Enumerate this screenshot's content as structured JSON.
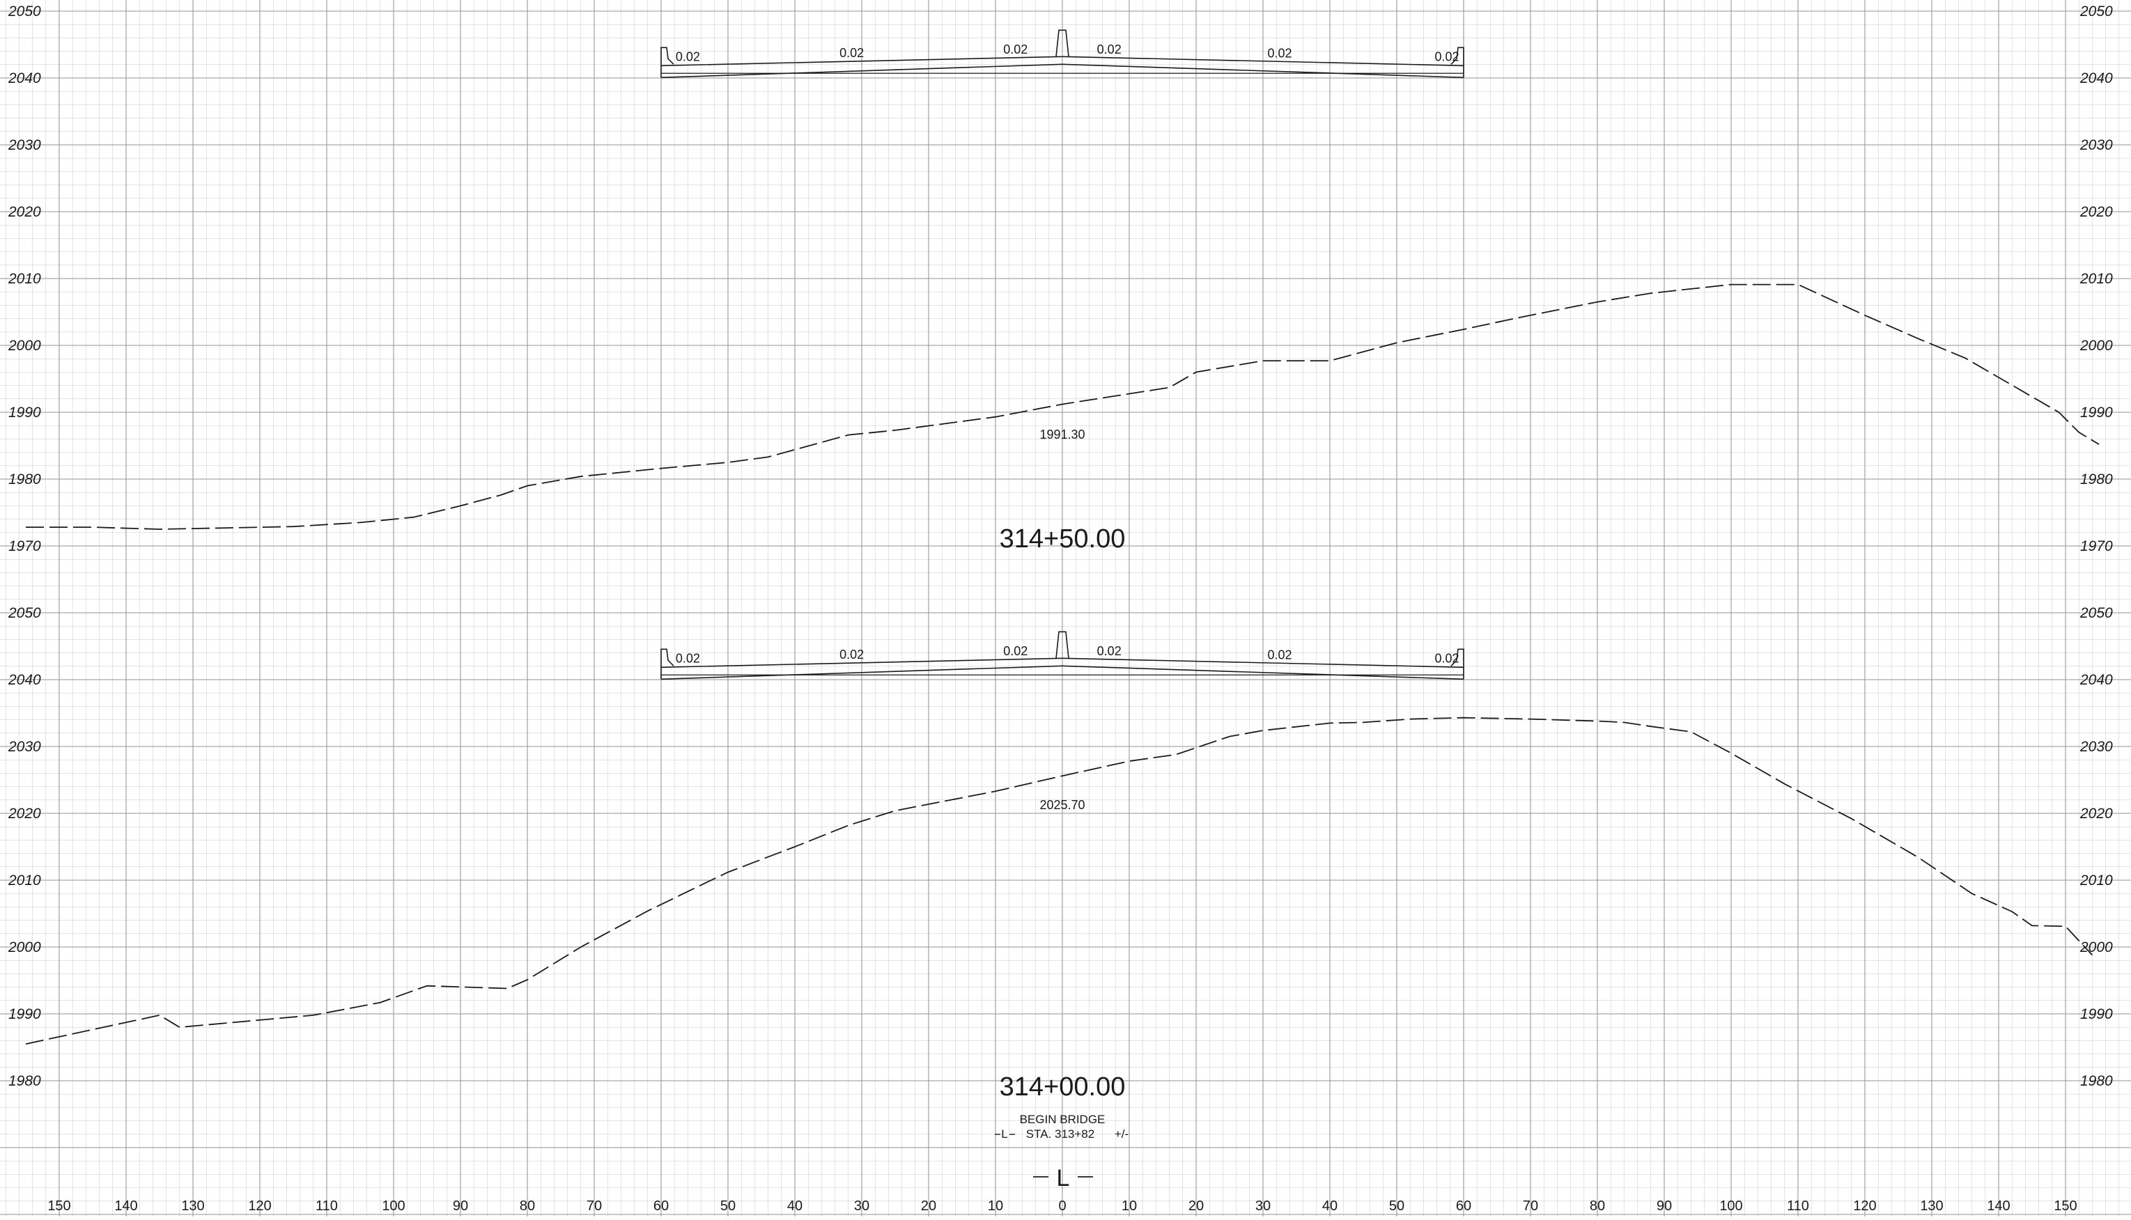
{
  "sheet": {
    "grid_color": "#9a9a9a",
    "line_color": "#1a1a1a",
    "offsets": [
      "150",
      "140",
      "130",
      "120",
      "110",
      "100",
      "90",
      "80",
      "70",
      "60",
      "50",
      "40",
      "30",
      "20",
      "10",
      "0",
      "10",
      "20",
      "30",
      "40",
      "50",
      "60",
      "70",
      "80",
      "90",
      "100",
      "110",
      "120",
      "130",
      "140",
      "150"
    ]
  },
  "sections": [
    {
      "station": "314+50.00",
      "centerline_elevation": "1991.30",
      "elevation_labels": [
        "2050",
        "2040",
        "2030",
        "2020",
        "2010",
        "2000",
        "1990",
        "1980",
        "1970"
      ],
      "elev_max": 2050,
      "slopes": [
        "0.02",
        "0.02",
        "0.02",
        "0.02",
        "0.02",
        "0.02"
      ],
      "ground": [
        [
          -155,
          1972.8
        ],
        [
          -145,
          1972.8
        ],
        [
          -135,
          1972.5
        ],
        [
          -125,
          1972.7
        ],
        [
          -115,
          1972.9
        ],
        [
          -105,
          1973.5
        ],
        [
          -97,
          1974.3
        ],
        [
          -90,
          1976.0
        ],
        [
          -84,
          1977.6
        ],
        [
          -80,
          1979.0
        ],
        [
          -72,
          1980.4
        ],
        [
          -60,
          1981.6
        ],
        [
          -50,
          1982.5
        ],
        [
          -44,
          1983.3
        ],
        [
          -32,
          1986.6
        ],
        [
          -25,
          1987.3
        ],
        [
          -10,
          1989.3
        ],
        [
          0,
          1991.2
        ],
        [
          16,
          1993.7
        ],
        [
          20,
          1996.0
        ],
        [
          30,
          1997.7
        ],
        [
          40,
          1997.7
        ],
        [
          50,
          2000.4
        ],
        [
          60,
          2002.4
        ],
        [
          68,
          2004.1
        ],
        [
          80,
          2006.5
        ],
        [
          88,
          2007.8
        ],
        [
          100,
          2009.1
        ],
        [
          110,
          2009.1
        ],
        [
          120,
          2004.5
        ],
        [
          128,
          2001.0
        ],
        [
          135,
          1998.1
        ],
        [
          149,
          1990.0
        ],
        [
          152,
          1987.0
        ],
        [
          155,
          1985.2
        ]
      ]
    },
    {
      "station": "314+00.00",
      "centerline_elevation": "2025.70",
      "elevation_labels": [
        "2050",
        "2040",
        "2030",
        "2020",
        "2010",
        "2000",
        "1990",
        "1980"
      ],
      "elev_max": 2050,
      "slopes": [
        "0.02",
        "0.02",
        "0.02",
        "0.02",
        "0.02",
        "0.02"
      ],
      "ground": [
        [
          -155,
          1985.5
        ],
        [
          -135,
          1989.8
        ],
        [
          -132,
          1988.0
        ],
        [
          -112,
          1989.8
        ],
        [
          -102,
          1991.7
        ],
        [
          -95,
          1994.2
        ],
        [
          -83,
          1993.8
        ],
        [
          -80,
          1995.1
        ],
        [
          -72,
          2000.0
        ],
        [
          -62,
          2005.4
        ],
        [
          -55,
          2008.8
        ],
        [
          -50,
          2011.2
        ],
        [
          -40,
          2015.0
        ],
        [
          -32,
          2018.2
        ],
        [
          -25,
          2020.4
        ],
        [
          -10,
          2023.3
        ],
        [
          0,
          2025.6
        ],
        [
          10,
          2027.8
        ],
        [
          17,
          2028.8
        ],
        [
          25,
          2031.5
        ],
        [
          30,
          2032.4
        ],
        [
          40,
          2033.5
        ],
        [
          45,
          2033.6
        ],
        [
          52,
          2034.1
        ],
        [
          60,
          2034.3
        ],
        [
          70,
          2034.1
        ],
        [
          80,
          2033.8
        ],
        [
          84,
          2033.6
        ],
        [
          88,
          2033.0
        ],
        [
          94,
          2032.2
        ],
        [
          100,
          2029.0
        ],
        [
          108,
          2024.4
        ],
        [
          118,
          2019.2
        ],
        [
          128,
          2013.4
        ],
        [
          136,
          2008.0
        ],
        [
          142,
          2005.3
        ],
        [
          145,
          2003.2
        ],
        [
          150,
          2003.1
        ],
        [
          154,
          1998.8
        ]
      ]
    }
  ],
  "bridge_note": {
    "line1": "BEGIN  BRIDGE",
    "line2": "STA. 313+82",
    "l_label": "L",
    "tolerance": "+/-"
  },
  "centerline_symbol": "L"
}
